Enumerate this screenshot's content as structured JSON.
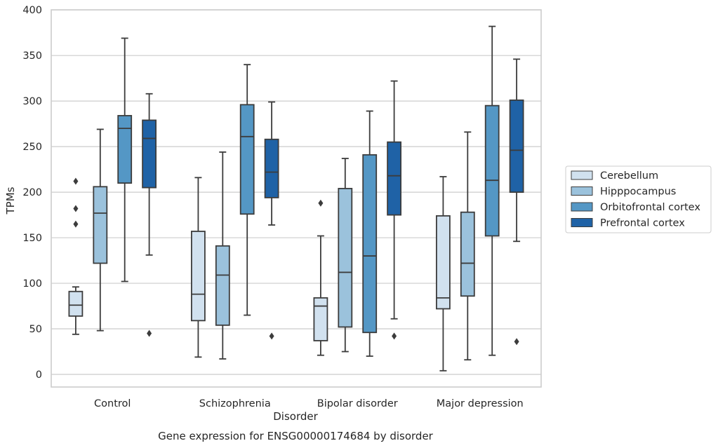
{
  "chart_data": {
    "type": "box",
    "title": "",
    "caption": "Gene expression for ENSG00000174684 by disorder",
    "xlabel": "Disorder",
    "ylabel": "TPMs",
    "ylim": [
      -15,
      400
    ],
    "yticks": [
      0,
      50,
      100,
      150,
      200,
      250,
      300,
      350,
      400
    ],
    "grid": "horizontal",
    "legend_position": "right",
    "categories": [
      "Control",
      "Schizophrenia",
      "Bipolar disorder",
      "Major depression"
    ],
    "series": [
      {
        "name": "Cerebellum",
        "color": "#d1e1ef",
        "boxes": [
          {
            "whislo": 44,
            "q1": 64,
            "med": 76,
            "q3": 91,
            "whishi": 96,
            "fliers": [
              165,
              182,
              212
            ]
          },
          {
            "whislo": 19,
            "q1": 59,
            "med": 88,
            "q3": 157,
            "whishi": 216,
            "fliers": []
          },
          {
            "whislo": 21,
            "q1": 37,
            "med": 75,
            "q3": 84,
            "whishi": 152,
            "fliers": [
              188
            ]
          },
          {
            "whislo": 4,
            "q1": 72,
            "med": 84,
            "q3": 174,
            "whishi": 217,
            "fliers": []
          }
        ]
      },
      {
        "name": "Hipppocampus",
        "color": "#9bc2dc",
        "boxes": [
          {
            "whislo": 48,
            "q1": 122,
            "med": 177,
            "q3": 206,
            "whishi": 269,
            "fliers": []
          },
          {
            "whislo": 17,
            "q1": 54,
            "med": 109,
            "q3": 141,
            "whishi": 244,
            "fliers": []
          },
          {
            "whislo": 25,
            "q1": 52,
            "med": 112,
            "q3": 204,
            "whishi": 237,
            "fliers": []
          },
          {
            "whislo": 16,
            "q1": 86,
            "med": 122,
            "q3": 178,
            "whishi": 266,
            "fliers": []
          }
        ]
      },
      {
        "name": "Orbitofrontal cortex",
        "color": "#5497c5",
        "boxes": [
          {
            "whislo": 102,
            "q1": 210,
            "med": 270,
            "q3": 284,
            "whishi": 369,
            "fliers": []
          },
          {
            "whislo": 65,
            "q1": 176,
            "med": 261,
            "q3": 296,
            "whishi": 340,
            "fliers": []
          },
          {
            "whislo": 20,
            "q1": 46,
            "med": 130,
            "q3": 241,
            "whishi": 289,
            "fliers": []
          },
          {
            "whislo": 21,
            "q1": 152,
            "med": 213,
            "q3": 295,
            "whishi": 382,
            "fliers": []
          }
        ]
      },
      {
        "name": "Prefrontal cortex",
        "color": "#1f62a6",
        "boxes": [
          {
            "whislo": 131,
            "q1": 205,
            "med": 259,
            "q3": 279,
            "whishi": 308,
            "fliers": [
              45
            ]
          },
          {
            "whislo": 164,
            "q1": 194,
            "med": 222,
            "q3": 258,
            "whishi": 299,
            "fliers": [
              42
            ]
          },
          {
            "whislo": 61,
            "q1": 175,
            "med": 218,
            "q3": 255,
            "whishi": 322,
            "fliers": [
              42
            ]
          },
          {
            "whislo": 146,
            "q1": 200,
            "med": 246,
            "q3": 301,
            "whishi": 346,
            "fliers": [
              36
            ]
          }
        ]
      }
    ]
  }
}
